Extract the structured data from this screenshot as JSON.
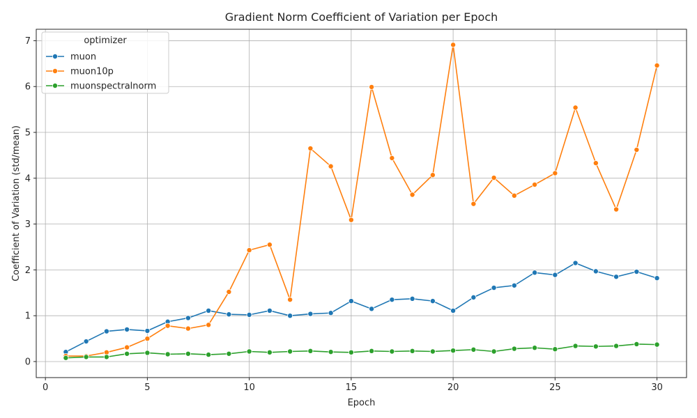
{
  "chart_data": {
    "type": "line",
    "title": "Gradient Norm Coefficient of Variation per Epoch",
    "xlabel": "Epoch",
    "ylabel": "Coefficient of Variation (std/mean)",
    "xlim": [
      -0.45,
      31.45
    ],
    "ylim": [
      -0.35,
      7.25
    ],
    "xticks": [
      0,
      5,
      10,
      15,
      20,
      25,
      30
    ],
    "yticks": [
      0,
      1,
      2,
      3,
      4,
      5,
      6,
      7
    ],
    "grid": true,
    "legend": {
      "title": "optimizer",
      "placement": "top-left"
    },
    "x": [
      1,
      2,
      3,
      4,
      5,
      6,
      7,
      8,
      9,
      10,
      11,
      12,
      13,
      14,
      15,
      16,
      17,
      18,
      19,
      20,
      21,
      22,
      23,
      24,
      25,
      26,
      27,
      28,
      29,
      30
    ],
    "series": [
      {
        "name": "muon",
        "color": "#1f77b4",
        "values": [
          0.21,
          0.44,
          0.66,
          0.7,
          0.67,
          0.87,
          0.95,
          1.11,
          1.03,
          1.02,
          1.11,
          1.0,
          1.04,
          1.06,
          1.32,
          1.15,
          1.35,
          1.37,
          1.32,
          1.11,
          1.4,
          1.61,
          1.66,
          1.94,
          1.89,
          2.15,
          1.97,
          1.85,
          1.96,
          1.82
        ]
      },
      {
        "name": "muon10p",
        "color": "#ff7f0e",
        "values": [
          0.12,
          0.12,
          0.2,
          0.31,
          0.5,
          0.78,
          0.72,
          0.8,
          1.52,
          2.43,
          2.55,
          1.35,
          4.65,
          4.26,
          3.09,
          5.99,
          4.44,
          3.64,
          4.07,
          6.91,
          3.44,
          4.01,
          3.62,
          3.86,
          4.11,
          5.54,
          4.33,
          3.32,
          4.62,
          6.46
        ]
      },
      {
        "name": "muonspectralnorm",
        "color": "#2ca02c",
        "values": [
          0.08,
          0.1,
          0.1,
          0.17,
          0.19,
          0.16,
          0.17,
          0.15,
          0.17,
          0.22,
          0.2,
          0.22,
          0.23,
          0.21,
          0.2,
          0.23,
          0.22,
          0.23,
          0.22,
          0.24,
          0.26,
          0.22,
          0.28,
          0.3,
          0.27,
          0.34,
          0.33,
          0.34,
          0.38,
          0.37
        ]
      }
    ]
  }
}
